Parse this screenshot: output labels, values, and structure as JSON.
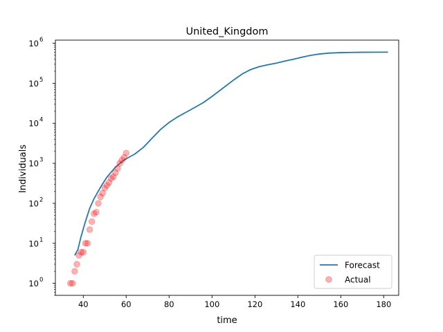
{
  "chart_data": {
    "type": "line",
    "title": "United_Kingdom",
    "xlabel": "time",
    "ylabel": "Individuals",
    "xlim": [
      27,
      187
    ],
    "ylim": [
      0.5,
      1200000
    ],
    "yscale": "log",
    "x_ticks": [
      "40",
      "60",
      "80",
      "100",
      "120",
      "140",
      "160",
      "180"
    ],
    "y_ticks": [
      {
        "base": "10",
        "exp": "0"
      },
      {
        "base": "10",
        "exp": "1"
      },
      {
        "base": "10",
        "exp": "2"
      },
      {
        "base": "10",
        "exp": "3"
      },
      {
        "base": "10",
        "exp": "4"
      },
      {
        "base": "10",
        "exp": "5"
      },
      {
        "base": "10",
        "exp": "6"
      }
    ],
    "grid": false,
    "legend_position": "bottom-right",
    "series": [
      {
        "name": "Forecast",
        "kind": "line",
        "color": "#1f77b4",
        "x": [
          36,
          37.5,
          39,
          41,
          43,
          45,
          48,
          51,
          55,
          58,
          60,
          64,
          68,
          72,
          76,
          80,
          84,
          88,
          92,
          96,
          100,
          105,
          110,
          114,
          118,
          122,
          126,
          130,
          134,
          138,
          142,
          146,
          150,
          155,
          160,
          165,
          170,
          175,
          182
        ],
        "y": [
          5,
          7,
          15,
          35,
          75,
          130,
          250,
          450,
          800,
          1100,
          1300,
          1700,
          2500,
          4200,
          7000,
          10500,
          14500,
          19000,
          25000,
          33000,
          47000,
          75000,
          120000,
          170000,
          220000,
          260000,
          290000,
          320000,
          360000,
          400000,
          450000,
          500000,
          540000,
          570000,
          585000,
          592000,
          596000,
          598000,
          600000
        ]
      },
      {
        "name": "Actual",
        "kind": "scatter",
        "color": "#ff0000",
        "x": [
          34,
          35,
          36,
          37,
          38,
          39,
          40,
          41,
          42,
          43,
          44,
          45,
          46,
          47,
          48,
          49,
          50,
          51,
          52,
          53,
          54,
          55,
          56,
          57,
          58,
          59,
          60
        ],
        "y": [
          1,
          1,
          2,
          3,
          5,
          6,
          6,
          10,
          10,
          22,
          35,
          55,
          60,
          100,
          145,
          180,
          240,
          280,
          330,
          420,
          460,
          580,
          750,
          1000,
          1200,
          1400,
          1800
        ]
      }
    ]
  }
}
